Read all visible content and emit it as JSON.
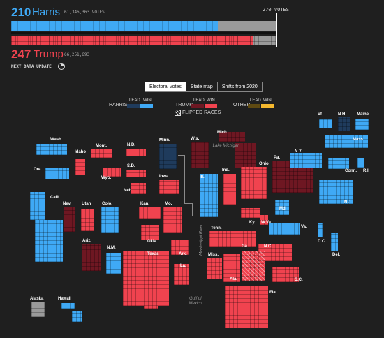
{
  "header": {
    "harris_ev": "210",
    "harris_name": "Harris",
    "harris_votes": "61,346,363 VOTES",
    "trump_ev": "247",
    "trump_name": "Trump",
    "trump_votes": "66,251,693",
    "threshold": "270 VOTES",
    "next_update": "NEXT DATA UPDATE"
  },
  "bars": {
    "harris_fraction": 0.78,
    "trump_fraction": 0.915
  },
  "tabs": [
    {
      "label": "Electoral votes",
      "active": true
    },
    {
      "label": "State map",
      "active": false
    },
    {
      "label": "Shifts from 2020",
      "active": false
    }
  ],
  "legend": {
    "lead": "LEAD",
    "win": "WIN",
    "harris": "HARRIS",
    "trump": "TRUMP",
    "other": "OTHER",
    "flipped": "FLIPPED RACES"
  },
  "colors": {
    "harris_win": "#3fa9f5",
    "harris_lead": "#1f3b5c",
    "trump_win": "#f0434f",
    "trump_lead": "#6e1722",
    "other_lead": "#5f4a12",
    "other_win": "#f5b82e",
    "uncalled": "#9a9a9a"
  },
  "states": [
    {
      "abbr": "Wash.",
      "status": "harris_win"
    },
    {
      "abbr": "Ore.",
      "status": "harris_win"
    },
    {
      "abbr": "Calif.",
      "status": "harris_win"
    },
    {
      "abbr": "Nev.",
      "status": "trump_lead"
    },
    {
      "abbr": "Idaho",
      "status": "trump_win"
    },
    {
      "abbr": "Mont.",
      "status": "trump_win"
    },
    {
      "abbr": "Wyo.",
      "status": "trump_win"
    },
    {
      "abbr": "Utah",
      "status": "trump_win"
    },
    {
      "abbr": "Colo.",
      "status": "harris_win"
    },
    {
      "abbr": "Ariz.",
      "status": "trump_lead"
    },
    {
      "abbr": "N.M.",
      "status": "harris_win"
    },
    {
      "abbr": "N.D.",
      "status": "trump_win"
    },
    {
      "abbr": "S.D.",
      "status": "trump_win"
    },
    {
      "abbr": "Neb.",
      "status": "trump_win"
    },
    {
      "abbr": "Kan.",
      "status": "trump_win"
    },
    {
      "abbr": "Okla.",
      "status": "trump_win"
    },
    {
      "abbr": "Texas",
      "status": "trump_win"
    },
    {
      "abbr": "Minn.",
      "status": "harris_lead"
    },
    {
      "abbr": "Iowa",
      "status": "trump_win"
    },
    {
      "abbr": "Mo.",
      "status": "trump_win"
    },
    {
      "abbr": "Ark.",
      "status": "trump_win"
    },
    {
      "abbr": "La.",
      "status": "trump_win"
    },
    {
      "abbr": "Wis.",
      "status": "trump_lead"
    },
    {
      "abbr": "Ill.",
      "status": "harris_win"
    },
    {
      "abbr": "Mich.",
      "status": "trump_lead"
    },
    {
      "abbr": "Ind.",
      "status": "trump_win"
    },
    {
      "abbr": "Ohio",
      "status": "trump_win"
    },
    {
      "abbr": "Ky.",
      "status": "trump_win"
    },
    {
      "abbr": "Tenn.",
      "status": "trump_win"
    },
    {
      "abbr": "Miss.",
      "status": "trump_win"
    },
    {
      "abbr": "Ala.",
      "status": "trump_win"
    },
    {
      "abbr": "Ga.",
      "status": "trump_win"
    },
    {
      "abbr": "Fla.",
      "status": "trump_win"
    },
    {
      "abbr": "S.C.",
      "status": "trump_win"
    },
    {
      "abbr": "N.C.",
      "status": "trump_win"
    },
    {
      "abbr": "Va.",
      "status": "harris_win"
    },
    {
      "abbr": "W.Va.",
      "status": "trump_win"
    },
    {
      "abbr": "Pa.",
      "status": "trump_lead"
    },
    {
      "abbr": "N.Y.",
      "status": "harris_win"
    },
    {
      "abbr": "Md.",
      "status": "harris_win"
    },
    {
      "abbr": "Del.",
      "status": "harris_win"
    },
    {
      "abbr": "N.J.",
      "status": "harris_win"
    },
    {
      "abbr": "D.C.",
      "status": "harris_win"
    },
    {
      "abbr": "Conn.",
      "status": "harris_win"
    },
    {
      "abbr": "R.I.",
      "status": "harris_win"
    },
    {
      "abbr": "Mass.",
      "status": "harris_win"
    },
    {
      "abbr": "Vt.",
      "status": "harris_win"
    },
    {
      "abbr": "N.H.",
      "status": "harris_lead"
    },
    {
      "abbr": "Maine",
      "status": "harris_win"
    },
    {
      "abbr": "Alaska",
      "status": "uncalled"
    },
    {
      "abbr": "Hawaii",
      "status": "harris_win"
    }
  ],
  "water_labels": {
    "lake_michigan": "Lake Michigan",
    "mississippi": "Mississippi River",
    "gulf": "Gulf of Mexico"
  }
}
